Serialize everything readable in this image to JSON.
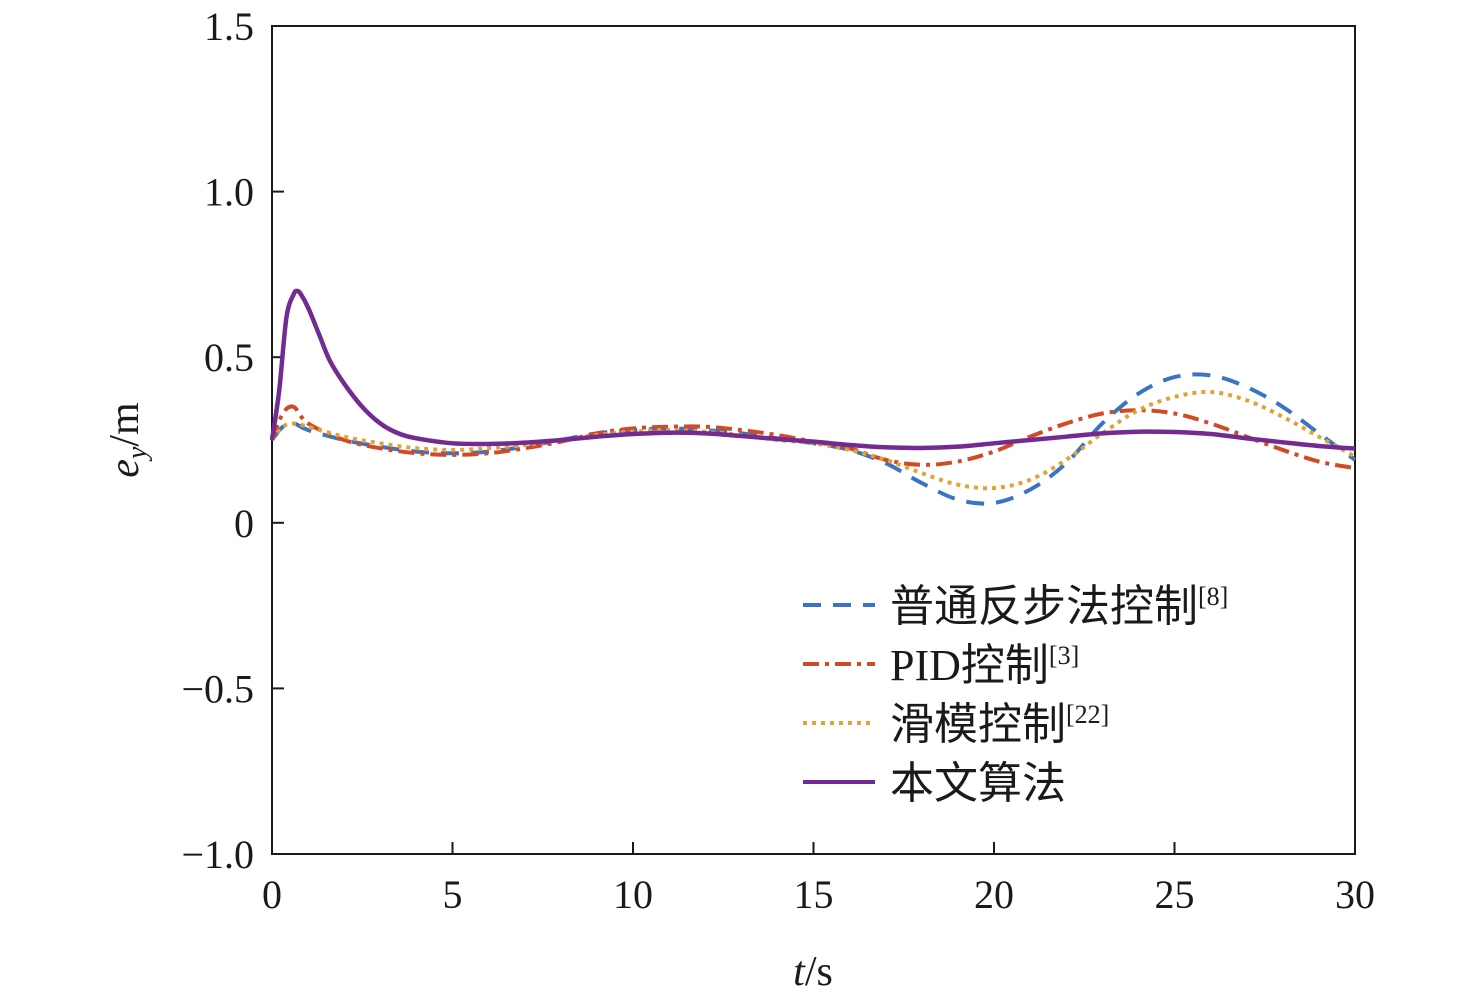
{
  "chart_data": {
    "type": "line",
    "xlabel": {
      "var": "t",
      "unit": "/s"
    },
    "ylabel": {
      "var": "e",
      "sub": "y",
      "unit": "/m"
    },
    "xlim": [
      0,
      30
    ],
    "ylim": [
      -1.0,
      1.5
    ],
    "xticks": [
      0,
      5,
      10,
      15,
      20,
      25,
      30
    ],
    "xtick_labels": [
      "0",
      "5",
      "10",
      "15",
      "20",
      "25",
      "30"
    ],
    "yticks": [
      -1.0,
      -0.5,
      0,
      0.5,
      1.0,
      1.5
    ],
    "ytick_labels": [
      "−1.0",
      "−0.5",
      "0",
      "0.5",
      "1.0",
      "1.5"
    ],
    "legend_position": "lower-right",
    "series": [
      {
        "name": "普通反步法控制",
        "ref": "[8]",
        "color": "#3a75c4",
        "style": "dashed",
        "x": [
          0,
          0.3,
          0.6,
          1,
          2,
          3,
          4,
          5,
          6,
          7,
          8,
          9,
          10,
          11,
          12,
          13,
          14,
          15,
          16,
          17,
          18,
          19,
          20,
          21,
          22,
          23,
          24,
          25,
          26,
          27,
          28,
          29,
          30
        ],
        "y": [
          0.25,
          0.29,
          0.3,
          0.28,
          0.25,
          0.23,
          0.215,
          0.21,
          0.215,
          0.23,
          0.25,
          0.27,
          0.28,
          0.285,
          0.28,
          0.27,
          0.255,
          0.24,
          0.22,
          0.18,
          0.12,
          0.07,
          0.06,
          0.1,
          0.18,
          0.3,
          0.39,
          0.44,
          0.445,
          0.41,
          0.35,
          0.27,
          0.19
        ]
      },
      {
        "name": "PID控制",
        "ref": "[3]",
        "color": "#d04a26",
        "style": "dashdot",
        "x": [
          0,
          0.3,
          0.6,
          1,
          2,
          3,
          4,
          5,
          6,
          7,
          8,
          9,
          10,
          11,
          12,
          13,
          14,
          15,
          16,
          17,
          18,
          19,
          20,
          21,
          22,
          23,
          24,
          25,
          26,
          27,
          28,
          29,
          30
        ],
        "y": [
          0.25,
          0.33,
          0.35,
          0.3,
          0.25,
          0.225,
          0.21,
          0.205,
          0.21,
          0.225,
          0.245,
          0.27,
          0.285,
          0.29,
          0.29,
          0.28,
          0.265,
          0.245,
          0.225,
          0.19,
          0.175,
          0.185,
          0.215,
          0.26,
          0.3,
          0.33,
          0.34,
          0.33,
          0.3,
          0.26,
          0.22,
          0.185,
          0.165
        ]
      },
      {
        "name": "滑模控制",
        "ref": "[22]",
        "color": "#e2a236",
        "style": "dotted",
        "x": [
          0,
          0.3,
          0.6,
          1,
          2,
          3,
          4,
          5,
          6,
          7,
          8,
          9,
          10,
          11,
          12,
          13,
          14,
          15,
          16,
          17,
          18,
          19,
          20,
          21,
          22,
          23,
          24,
          25,
          26,
          27,
          28,
          29,
          30
        ],
        "y": [
          0.25,
          0.29,
          0.3,
          0.29,
          0.26,
          0.24,
          0.225,
          0.22,
          0.225,
          0.235,
          0.25,
          0.265,
          0.275,
          0.28,
          0.275,
          0.265,
          0.25,
          0.24,
          0.22,
          0.19,
          0.15,
          0.115,
          0.105,
          0.13,
          0.19,
          0.27,
          0.34,
          0.38,
          0.395,
          0.37,
          0.32,
          0.26,
          0.2
        ]
      },
      {
        "name": "本文算法",
        "ref": "",
        "color": "#742b91",
        "style": "solid",
        "x": [
          0,
          0.2,
          0.4,
          0.6,
          0.7,
          0.8,
          1.0,
          1.3,
          1.6,
          2,
          2.5,
          3,
          3.5,
          4,
          5,
          6,
          7,
          8,
          9,
          10,
          11,
          12,
          13,
          14,
          15,
          16,
          17,
          18,
          19,
          20,
          21,
          22,
          23,
          24,
          25,
          26,
          27,
          28,
          29,
          30
        ],
        "y": [
          0.25,
          0.4,
          0.62,
          0.69,
          0.7,
          0.69,
          0.65,
          0.57,
          0.49,
          0.42,
          0.35,
          0.3,
          0.27,
          0.255,
          0.24,
          0.238,
          0.242,
          0.25,
          0.26,
          0.268,
          0.272,
          0.27,
          0.262,
          0.253,
          0.245,
          0.235,
          0.228,
          0.226,
          0.23,
          0.24,
          0.25,
          0.26,
          0.27,
          0.275,
          0.274,
          0.268,
          0.255,
          0.243,
          0.232,
          0.224
        ]
      }
    ]
  }
}
